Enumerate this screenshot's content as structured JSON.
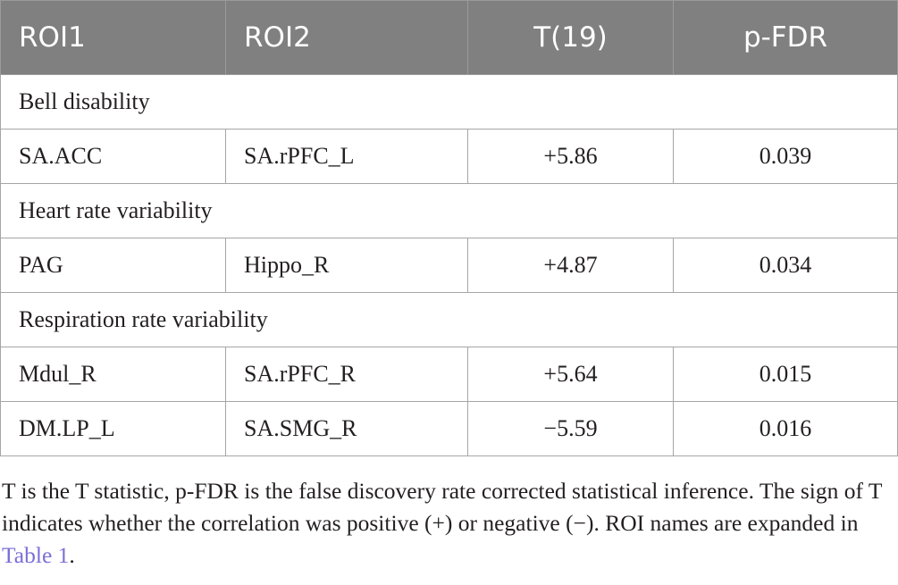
{
  "table": {
    "headers": [
      "ROI1",
      "ROI2",
      "T(19)",
      "p-FDR"
    ],
    "sections": [
      {
        "title": "Bell disability",
        "rows": [
          {
            "roi1": "SA.ACC",
            "roi2": "SA.rPFC_L",
            "t": "+5.86",
            "p": "0.039"
          }
        ]
      },
      {
        "title": "Heart rate variability",
        "rows": [
          {
            "roi1": "PAG",
            "roi2": "Hippo_R",
            "t": "+4.87",
            "p": "0.034"
          }
        ]
      },
      {
        "title": "Respiration rate variability",
        "rows": [
          {
            "roi1": "Mdul_R",
            "roi2": "SA.rPFC_R",
            "t": "+5.64",
            "p": "0.015"
          },
          {
            "roi1": "DM.LP_L",
            "roi2": "SA.SMG_R",
            "t": "−5.59",
            "p": "0.016"
          }
        ]
      }
    ]
  },
  "footnote": {
    "text": "T is the T statistic, p-FDR is the false discovery rate corrected statistical inference. The sign of T indicates whether the correlation was positive (+) or negative (−). ROI names are expanded in ",
    "link": "Table 1",
    "end": "."
  }
}
